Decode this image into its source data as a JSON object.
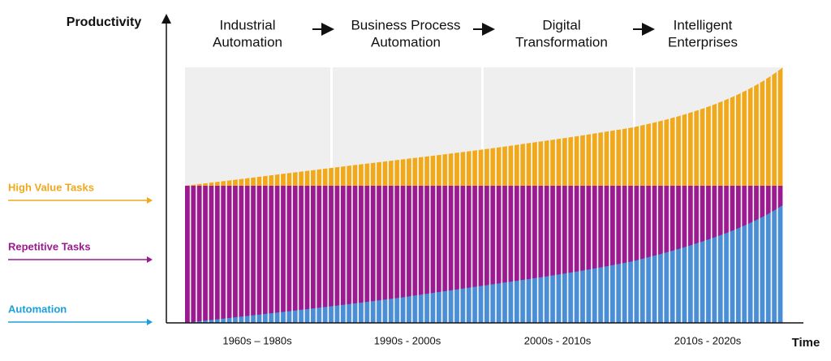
{
  "y_axis_label": "Productivity",
  "x_axis_label": "Time",
  "phases": [
    [
      "Industrial",
      "Automation"
    ],
    [
      "Business Process",
      "Automation"
    ],
    [
      "Digital",
      "Transformation"
    ],
    [
      "Intelligent",
      "Enterprises"
    ]
  ],
  "layers": [
    "High Value Tasks",
    "Repetitive Tasks",
    "Automation"
  ],
  "periods": [
    "1960s – 1980s",
    "1990s - 2000s",
    "2000s - 2010s",
    "2010s  - 2020s"
  ]
}
